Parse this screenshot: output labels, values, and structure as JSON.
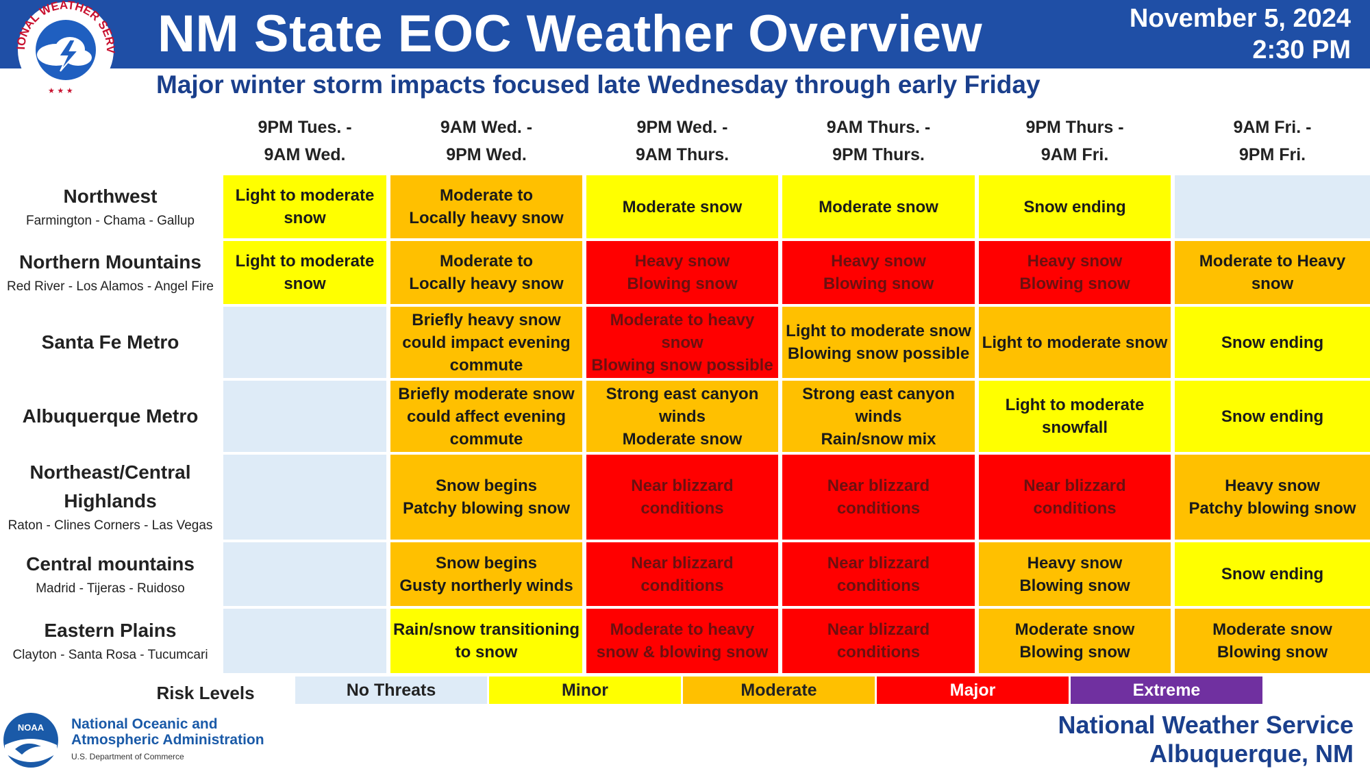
{
  "header": {
    "title": "NM State EOC Weather Overview",
    "date": "November 5, 2024",
    "time": "2:30 PM",
    "subtitle": "Major winter storm impacts focused late Wednesday through early Friday",
    "logo_text": "NATIONAL WEATHER SERVICE"
  },
  "columns": [
    {
      "line1": "9PM Tues. -",
      "line2": "9AM Wed."
    },
    {
      "line1": "9AM Wed. -",
      "line2": "9PM Wed."
    },
    {
      "line1": "9PM Wed. -",
      "line2": "9AM Thurs."
    },
    {
      "line1": "9AM Thurs. -",
      "line2": "9PM Thurs."
    },
    {
      "line1": "9PM Thurs -",
      "line2": "9AM Fri."
    },
    {
      "line1": "9AM Fri. -",
      "line2": "9PM Fri."
    }
  ],
  "rows": [
    {
      "name": "Northwest",
      "sub": "Farmington - Chama - Gallup",
      "cells": [
        {
          "text": "Light to moderate\nsnow",
          "level": "minor"
        },
        {
          "text": "Moderate to\nLocally heavy snow",
          "level": "moderate"
        },
        {
          "text": "Moderate snow",
          "level": "minor"
        },
        {
          "text": "Moderate snow",
          "level": "minor"
        },
        {
          "text": "Snow ending",
          "level": "minor"
        },
        {
          "text": "",
          "level": "none"
        }
      ]
    },
    {
      "name": "Northern Mountains",
      "sub": "Red River - Los Alamos - Angel Fire",
      "cells": [
        {
          "text": "Light to moderate\nsnow",
          "level": "minor"
        },
        {
          "text": "Moderate to\nLocally heavy snow",
          "level": "moderate"
        },
        {
          "text": "Heavy snow\nBlowing snow",
          "level": "major"
        },
        {
          "text": "Heavy snow\nBlowing snow",
          "level": "major"
        },
        {
          "text": "Heavy snow\nBlowing snow",
          "level": "major"
        },
        {
          "text": "Moderate to Heavy\nsnow",
          "level": "moderate"
        }
      ]
    },
    {
      "name": "Santa Fe Metro",
      "sub": "",
      "cells": [
        {
          "text": "",
          "level": "none"
        },
        {
          "text": "Briefly heavy snow\ncould impact evening\ncommute",
          "level": "moderate"
        },
        {
          "text": "Moderate to heavy\nsnow\nBlowing snow possible",
          "level": "major"
        },
        {
          "text": "Light to moderate snow\nBlowing snow possible",
          "level": "moderate"
        },
        {
          "text": "Light to moderate snow",
          "level": "moderate"
        },
        {
          "text": "Snow ending",
          "level": "minor"
        }
      ]
    },
    {
      "name": "Albuquerque Metro",
      "sub": "",
      "cells": [
        {
          "text": "",
          "level": "none"
        },
        {
          "text": "Briefly moderate snow\ncould affect evening\ncommute",
          "level": "moderate"
        },
        {
          "text": "Strong east canyon\nwinds\nModerate snow",
          "level": "moderate"
        },
        {
          "text": "Strong east canyon\nwinds\nRain/snow mix",
          "level": "moderate"
        },
        {
          "text": "Light to moderate\nsnowfall",
          "level": "minor"
        },
        {
          "text": "Snow ending",
          "level": "minor"
        }
      ]
    },
    {
      "name": "Northeast/Central\nHighlands",
      "sub": "Raton - Clines Corners - Las Vegas",
      "cells": [
        {
          "text": "",
          "level": "none"
        },
        {
          "text": "Snow begins\nPatchy blowing snow",
          "level": "moderate"
        },
        {
          "text": "Near blizzard conditions",
          "level": "major"
        },
        {
          "text": "Near blizzard conditions",
          "level": "major"
        },
        {
          "text": "Near blizzard conditions",
          "level": "major"
        },
        {
          "text": "Heavy snow\nPatchy blowing snow",
          "level": "moderate"
        }
      ]
    },
    {
      "name": "Central mountains",
      "sub": "Madrid - Tijeras -  Ruidoso",
      "cells": [
        {
          "text": "",
          "level": "none"
        },
        {
          "text": "Snow begins\nGusty northerly winds",
          "level": "moderate"
        },
        {
          "text": "Near blizzard conditions",
          "level": "major"
        },
        {
          "text": "Near blizzard conditions",
          "level": "major"
        },
        {
          "text": "Heavy snow\nBlowing snow",
          "level": "moderate"
        },
        {
          "text": "Snow ending",
          "level": "minor"
        }
      ]
    },
    {
      "name": "Eastern Plains",
      "sub": "Clayton - Santa Rosa - Tucumcari",
      "cells": [
        {
          "text": "",
          "level": "none"
        },
        {
          "text": "Rain/snow transitioning\nto snow",
          "level": "minor"
        },
        {
          "text": "Moderate to heavy\nsnow & blowing snow",
          "level": "major"
        },
        {
          "text": "Near blizzard conditions",
          "level": "major"
        },
        {
          "text": "Moderate snow\nBlowing snow",
          "level": "moderate"
        },
        {
          "text": "Moderate snow\nBlowing snow",
          "level": "moderate"
        }
      ]
    }
  ],
  "legend": {
    "label": "Risk Levels",
    "items": [
      {
        "name": "No Threats",
        "color": "#deebf7",
        "text_color": "#222222"
      },
      {
        "name": "Minor",
        "color": "#ffff00",
        "text_color": "#222222"
      },
      {
        "name": "Moderate",
        "color": "#ffc000",
        "text_color": "#222222"
      },
      {
        "name": "Major",
        "color": "#ff0000",
        "text_color": "#ffffff"
      },
      {
        "name": "Extreme",
        "color": "#7030a0",
        "text_color": "#ffffff"
      }
    ]
  },
  "footer": {
    "noaa_logo": "NOAA",
    "noaa_line1": "National Oceanic and",
    "noaa_line2": "Atmospheric Administration",
    "noaa_sub": "U.S. Department of Commerce",
    "nws_line1": "National Weather Service",
    "nws_line2": "Albuquerque, NM"
  },
  "colors": {
    "none": "#deebf7",
    "minor": "#ffff00",
    "moderate": "#ffc000",
    "major": "#ff0000",
    "banner": "#1f4fa6"
  }
}
